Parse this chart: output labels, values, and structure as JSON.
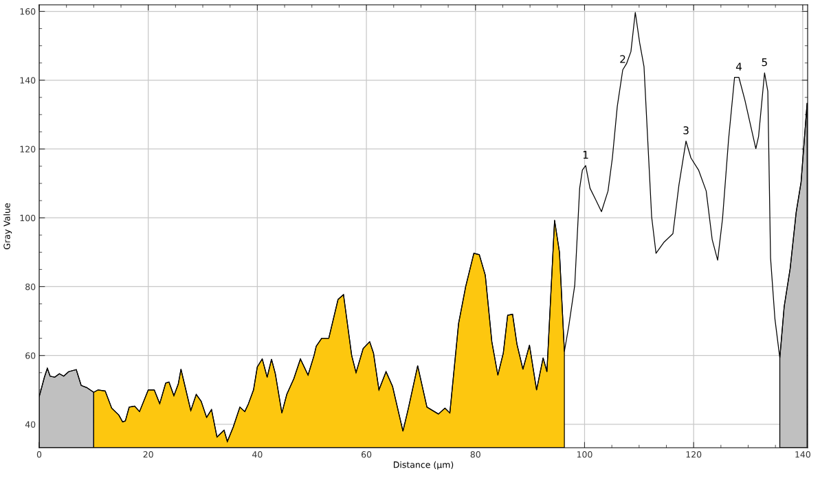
{
  "chart_data": {
    "type": "line",
    "xlabel": "Distance (µm)",
    "ylabel": "Gray Value",
    "xlim": [
      0,
      140.9
    ],
    "ylim": [
      33.2,
      161.9
    ],
    "xticks": [
      0,
      20,
      40,
      60,
      80,
      100,
      120,
      140
    ],
    "yticks": [
      40,
      60,
      80,
      100,
      120,
      140,
      160
    ],
    "grid": true,
    "series": [
      {
        "color": "#000000",
        "x": [
          0,
          0.96,
          1.5,
          2.0,
          2.85,
          3.7,
          4.5,
          5.4,
          6.8,
          7.7,
          8.7,
          10.0,
          10.8,
          12.1,
          13.3,
          14.6,
          15.3,
          15.8,
          16.5,
          17.5,
          18.4,
          20.0,
          21.1,
          22.1,
          23.2,
          23.8,
          24.7,
          25.5,
          26.0,
          27.8,
          28.8,
          29.7,
          30.7,
          31.6,
          32.6,
          33.5,
          33.9,
          34.5,
          35.6,
          36.8,
          37.7,
          38.3,
          39.3,
          40.0,
          40.9,
          41.8,
          42.6,
          43.3,
          44.5,
          45.4,
          46.7,
          47.9,
          49.3,
          50.4,
          50.8,
          51.8,
          53.1,
          54.8,
          55.8,
          57.3,
          58.1,
          59.4,
          60.6,
          61.3,
          62.3,
          63.6,
          64.8,
          66.7,
          67.7,
          69.4,
          71.1,
          73.2,
          74.4,
          75.3,
          76.9,
          78.2,
          79.7,
          80.7,
          81.8,
          83.0,
          84.1,
          85.1,
          85.9,
          86.8,
          87.6,
          88.7,
          89.9,
          91.2,
          92.4,
          93.1,
          94.5,
          95.4,
          96.3,
          97.1,
          98.2,
          99.1,
          99.6,
          100.2,
          101.0,
          102.1,
          103.1,
          104.3,
          105.1,
          106.0,
          107.0,
          107.7,
          108.5,
          109.3,
          110.1,
          110.9,
          112.3,
          113.1,
          114.5,
          116.2,
          117.3,
          118.6,
          119.5,
          120.9,
          122.3,
          123.4,
          124.4,
          125.3,
          126.4,
          127.5,
          128.3,
          129.4,
          131.4,
          131.9,
          133.0,
          133.6,
          134.1,
          134.9,
          135.8,
          136.6,
          137.7,
          138.8,
          139.7,
          140.8
        ],
        "values": [
          48,
          53.7,
          56.3,
          54,
          53.7,
          54.7,
          54,
          55.3,
          55.9,
          51.3,
          50.7,
          49.3,
          50,
          49.7,
          44.7,
          42.7,
          40.7,
          41,
          45,
          45.3,
          43.7,
          50,
          50,
          46,
          52,
          52.3,
          48.3,
          51.7,
          56,
          44,
          48.7,
          46.7,
          42,
          44.3,
          36.3,
          37.7,
          38.3,
          35,
          39.3,
          45,
          43.7,
          45.7,
          50,
          56.7,
          59,
          53.7,
          58.9,
          54.7,
          43.3,
          48.7,
          53.3,
          59,
          54.3,
          60,
          62.7,
          65,
          65,
          76.3,
          77.7,
          60,
          55,
          62,
          64,
          60.7,
          50,
          55.3,
          51,
          38,
          44.7,
          57,
          45,
          43,
          44.7,
          43.3,
          69.3,
          80,
          89.7,
          89.3,
          83.3,
          64,
          54.3,
          60.7,
          71.7,
          72,
          63.3,
          56,
          63,
          50,
          59.3,
          55.3,
          99.3,
          90,
          61.2,
          68.5,
          80.4,
          108.6,
          113.9,
          115.2,
          108.6,
          105.1,
          101.8,
          107.8,
          117.4,
          132.4,
          143,
          144.8,
          148.3,
          159.7,
          150.9,
          143.9,
          100.3,
          89.7,
          92.8,
          95.4,
          109.5,
          122.3,
          117.4,
          113.9,
          107.8,
          93.7,
          87.7,
          99.8,
          122.7,
          140.8,
          140.8,
          134.2,
          120.1,
          123.6,
          142.1,
          136.8,
          88.4,
          70.7,
          59.3,
          74.2,
          85.3,
          101.6,
          110.4,
          133.3
        ]
      },
      {
        "type": "area",
        "color": "#c0c0c0",
        "x": [
          0,
          0.96,
          1.5,
          2.0,
          2.85,
          3.7,
          4.5,
          5.4,
          6.8,
          7.7,
          8.7,
          10.0
        ],
        "values": [
          48,
          53.7,
          56.3,
          54,
          53.7,
          54.7,
          54,
          55.3,
          55.9,
          51.3,
          50.7,
          49.3
        ]
      },
      {
        "type": "area",
        "color": "#fdc70f",
        "x": [
          10.0,
          10.8,
          12.1,
          13.3,
          14.6,
          15.3,
          15.8,
          16.5,
          17.5,
          18.4,
          20.0,
          21.1,
          22.1,
          23.2,
          23.8,
          24.7,
          25.5,
          26.0,
          27.8,
          28.8,
          29.7,
          30.7,
          31.6,
          32.6,
          33.5,
          33.9,
          34.5,
          35.6,
          36.8,
          37.7,
          38.3,
          39.3,
          40.0,
          40.9,
          41.8,
          42.6,
          43.3,
          44.5,
          45.4,
          46.7,
          47.9,
          49.3,
          50.4,
          50.8,
          51.8,
          53.1,
          54.8,
          55.8,
          57.3,
          58.1,
          59.4,
          60.6,
          61.3,
          62.3,
          63.6,
          64.8,
          66.7,
          67.7,
          69.4,
          71.1,
          73.2,
          74.4,
          75.3,
          76.9,
          78.2,
          79.7,
          80.7,
          81.8,
          83.0,
          84.1,
          85.1,
          85.9,
          86.8,
          87.6,
          88.7,
          89.9,
          91.2,
          92.4,
          93.1,
          94.5,
          95.4,
          96.3
        ],
        "values": [
          49.3,
          50,
          49.7,
          44.7,
          42.7,
          40.7,
          41,
          45,
          45.3,
          43.7,
          50,
          50,
          46,
          52,
          52.3,
          48.3,
          51.7,
          56,
          44,
          48.7,
          46.7,
          42,
          44.3,
          36.3,
          37.7,
          38.3,
          35,
          39.3,
          45,
          43.7,
          45.7,
          50,
          56.7,
          59,
          53.7,
          58.9,
          54.7,
          43.3,
          48.7,
          53.3,
          59,
          54.3,
          60,
          62.7,
          65,
          65,
          76.3,
          77.7,
          60,
          55,
          62,
          64,
          60.7,
          50,
          55.3,
          51,
          38,
          44.7,
          57,
          45,
          43,
          44.7,
          43.3,
          69.3,
          80,
          89.7,
          89.3,
          83.3,
          64,
          54.3,
          60.7,
          71.7,
          72,
          63.3,
          56,
          63,
          50,
          59.3,
          55.3,
          99.3,
          90,
          61.2
        ]
      },
      {
        "type": "area",
        "color": "#c0c0c0",
        "x": [
          135.8,
          136.6,
          137.7,
          138.8,
          139.7,
          140.8
        ],
        "values": [
          59.3,
          74.2,
          85.3,
          101.6,
          110.4,
          133.3
        ]
      }
    ],
    "annotations": [
      {
        "text": "1",
        "x": 100.2,
        "y": 115.2
      },
      {
        "text": "2",
        "x": 107.0,
        "y": 143
      },
      {
        "text": "3",
        "x": 118.6,
        "y": 122.3
      },
      {
        "text": "4",
        "x": 128.3,
        "y": 140.8
      },
      {
        "text": "5",
        "x": 133.0,
        "y": 142.1
      }
    ]
  }
}
